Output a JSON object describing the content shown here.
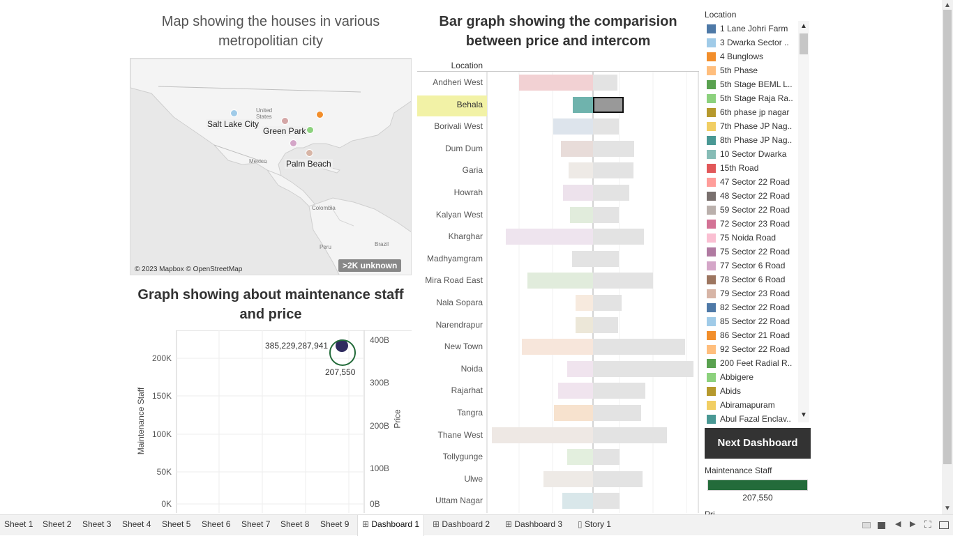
{
  "map_panel": {
    "title_line1": "Map showing the houses in various",
    "title_line2": "metropolitian city",
    "labels": {
      "salt_lake": "Salt Lake City",
      "green_park": "Green Park",
      "palm_beach": "Palm Beach"
    },
    "geo_labels": {
      "united_states_1": "United",
      "united_states_2": "States",
      "mexico": "Mexico",
      "colombia": "Colombia",
      "peru": "Peru",
      "brazil": "Brazil"
    },
    "attribution": "© 2023 Mapbox © OpenStreetMap",
    "unknown_badge": ">2K unknown",
    "dot_colors": {
      "salt_lake": "#a0cbe8",
      "green_park": "#8cd17d",
      "orange": "#f28e2b",
      "tan": "#d4a6a6",
      "purple": "#d4a6c8",
      "palm": "#d7b5a6"
    }
  },
  "scatter_panel": {
    "title_line1": "Graph showing about maintenance staff",
    "title_line2": "and price",
    "y_left_title": "Maintenance Staff",
    "y_right_title": "Price",
    "y_left_ticks": [
      "200K",
      "150K",
      "100K",
      "50K",
      "0K"
    ],
    "y_right_ticks": [
      "400B",
      "300B",
      "200B",
      "100B",
      "0B"
    ],
    "point_price_label": "385,229,287,941",
    "point_staff_label": "207,550"
  },
  "bar_panel": {
    "title_line1": "Bar graph showing the comparision",
    "title_line2": "between price and intercom",
    "column_header": "Location"
  },
  "chart_data": {
    "type": "bar",
    "categories": [
      "Andheri West",
      "Behala",
      "Borivali West",
      "Dum Dum",
      "Garia",
      "Howrah",
      "Kalyan West",
      "Kharghar",
      "Madhyamgram",
      "Mira Road East",
      "Nala Sopara",
      "Narendrapur",
      "New Town",
      "Noida",
      "Rajarhat",
      "Tangra",
      "Thane West",
      "Tollygunge",
      "Ulwe",
      "Uttam Nagar"
    ],
    "series": [
      {
        "values": [
          106,
          29,
          57,
          46,
          35,
          43,
          33,
          125,
          30,
          94,
          25,
          25,
          102,
          37,
          50,
          56,
          145,
          37,
          71,
          44
        ],
        "color_list": [
          "#f2d1d3",
          "#6fb3ad",
          "#dde4ec",
          "#e8dcd9",
          "#eeeae6",
          "#ede2ec",
          "#e1ecdc",
          "#eee4ee",
          "#e3e3e3",
          "#e1ecdc",
          "#f7eade",
          "#ece7d8",
          "#f7e6db",
          "#f0e4ee",
          "#f0e4ee",
          "#f7e2ce",
          "#eee8e4",
          "#e3efde",
          "#eeeae6",
          "#d9e7ea"
        ]
      },
      {
        "values": [
          35,
          44,
          37,
          59,
          58,
          52,
          37,
          73,
          37,
          86,
          41,
          36,
          132,
          144,
          75,
          69,
          106,
          38,
          71,
          38
        ]
      }
    ],
    "highlighted_category": "Behala"
  },
  "legend": {
    "title": "Location",
    "items": [
      {
        "label": "1 Lane Johri Farm",
        "color": "#4e79a7"
      },
      {
        "label": "3 Dwarka Sector ..",
        "color": "#a0cbe8"
      },
      {
        "label": "4 Bunglows",
        "color": "#f28e2b"
      },
      {
        "label": "5th Phase",
        "color": "#ffbe7d"
      },
      {
        "label": "5th Stage BEML L..",
        "color": "#59a14f"
      },
      {
        "label": "5th Stage Raja Ra..",
        "color": "#8cd17d"
      },
      {
        "label": "6th phase jp nagar",
        "color": "#b6992d"
      },
      {
        "label": "7th Phase JP Nag..",
        "color": "#f1ce63"
      },
      {
        "label": "8th Phase JP Nag..",
        "color": "#499894"
      },
      {
        "label": "10 Sector Dwarka",
        "color": "#86bcb6"
      },
      {
        "label": "15th Road",
        "color": "#e15759"
      },
      {
        "label": "47 Sector 22 Road",
        "color": "#ff9d9a"
      },
      {
        "label": "48 Sector 22 Road",
        "color": "#79706e"
      },
      {
        "label": "59 Sector 22 Road",
        "color": "#bab0ac"
      },
      {
        "label": "72 Sector 23 Road",
        "color": "#d37295"
      },
      {
        "label": "75 Noida Road",
        "color": "#fabfd2"
      },
      {
        "label": "75 Sector 22 Road",
        "color": "#b07aa1"
      },
      {
        "label": "77 Sector 6 Road",
        "color": "#d4a6c8"
      },
      {
        "label": "78 Sector 6 Road",
        "color": "#9d7660"
      },
      {
        "label": "79 Sector 23 Road",
        "color": "#d7b5a6"
      },
      {
        "label": "82 Sector 22 Road",
        "color": "#4e79a7"
      },
      {
        "label": "85 Sector 22 Road",
        "color": "#a0cbe8"
      },
      {
        "label": "86 Sector 21 Road",
        "color": "#f28e2b"
      },
      {
        "label": "92 Sector 22 Road",
        "color": "#ffbe7d"
      },
      {
        "label": "200 Feet Radial R..",
        "color": "#59a14f"
      },
      {
        "label": "Abbigere",
        "color": "#8cd17d"
      },
      {
        "label": "Abids",
        "color": "#b6992d"
      },
      {
        "label": "Abiramapuram",
        "color": "#f1ce63"
      },
      {
        "label": "Abul Fazal Enclav..",
        "color": "#499894"
      }
    ]
  },
  "next_button": "Next Dashboard",
  "size_legend": {
    "title": "Maintenance Staff",
    "value": "207,550",
    "color": "#236b3a"
  },
  "price_legend_partial": "Pri",
  "tabs": [
    "Sheet 1",
    "Sheet 2",
    "Sheet 3",
    "Sheet 4",
    "Sheet 5",
    "Sheet 6",
    "Sheet 7",
    "Sheet 8",
    "Sheet 9",
    "Dashboard 1",
    "Dashboard 2",
    "Dashboard 3",
    "Story 1"
  ],
  "active_tab": "Dashboard 1"
}
